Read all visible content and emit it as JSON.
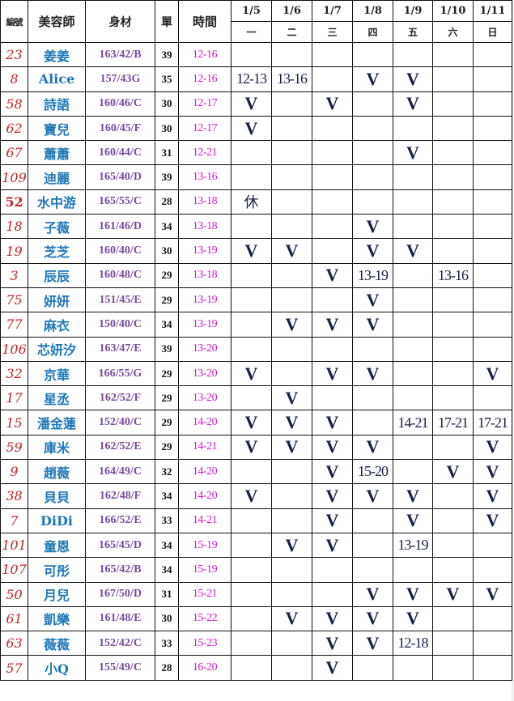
{
  "header": {
    "id": "編號",
    "name": "美容師",
    "body": "身材",
    "count": "單",
    "time": "時間",
    "dates": [
      "1/5",
      "1/6",
      "1/7",
      "1/8",
      "1/9",
      "1/10",
      "1/11"
    ],
    "days": [
      "一",
      "二",
      "三",
      "四",
      "五",
      "六",
      "日"
    ]
  },
  "colors": {
    "id": "#c0272d",
    "name": "#1f78b8",
    "body": "#7a4a9e",
    "time": "#d022c8",
    "mark": "#172247"
  },
  "rows": [
    {
      "id": "23",
      "name": "姜姜",
      "body": "163/42/B",
      "count": "39",
      "time": "12-16",
      "days": [
        "",
        "",
        "",
        "",
        "",
        "",
        ""
      ]
    },
    {
      "id": "8",
      "name": "Alice",
      "body": "157/43G",
      "count": "35",
      "time": "12-16",
      "days": [
        "12-13",
        "13-16",
        "",
        "V",
        "V",
        "",
        ""
      ]
    },
    {
      "id": "58",
      "name": "詩語",
      "body": "160/46/C",
      "count": "30",
      "time": "12-17",
      "days": [
        "V",
        "",
        "V",
        "",
        "V",
        "",
        ""
      ]
    },
    {
      "id": "62",
      "name": "寶兒",
      "body": "160/45/F",
      "count": "30",
      "time": "12-17",
      "days": [
        "V",
        "",
        "",
        "",
        "",
        "",
        ""
      ]
    },
    {
      "id": "67",
      "name": "蕭蕭",
      "body": "160/44/C",
      "count": "31",
      "time": "12-21",
      "days": [
        "",
        "",
        "",
        "",
        "V",
        "",
        ""
      ]
    },
    {
      "id": "109",
      "name": "迪麗",
      "body": "165/40/D",
      "count": "39",
      "time": "13-16",
      "days": [
        "",
        "",
        "",
        "",
        "",
        "",
        ""
      ]
    },
    {
      "id": "52",
      "name": "水中游",
      "body": "165/55/C",
      "count": "28",
      "time": "13-18",
      "days": [
        "休",
        "",
        "",
        "",
        "",
        "",
        ""
      ]
    },
    {
      "id": "18",
      "name": "子薇",
      "body": "161/46/D",
      "count": "34",
      "time": "13-18",
      "days": [
        "",
        "",
        "",
        "V",
        "",
        "",
        ""
      ]
    },
    {
      "id": "19",
      "name": "芝芝",
      "body": "160/40/C",
      "count": "30",
      "time": "13-19",
      "days": [
        "V",
        "V",
        "",
        "V",
        "V",
        "",
        ""
      ]
    },
    {
      "id": "3",
      "name": "辰辰",
      "body": "160/48/C",
      "count": "29",
      "time": "13-18",
      "days": [
        "",
        "",
        "V",
        "13-19",
        "",
        "13-16",
        ""
      ]
    },
    {
      "id": "75",
      "name": "妍妍",
      "body": "151/45/E",
      "count": "29",
      "time": "13-19",
      "days": [
        "",
        "",
        "",
        "V",
        "",
        "",
        ""
      ]
    },
    {
      "id": "77",
      "name": "麻衣",
      "body": "150/40/C",
      "count": "34",
      "time": "13-19",
      "days": [
        "",
        "V",
        "V",
        "V",
        "",
        "",
        ""
      ]
    },
    {
      "id": "106",
      "name": "芯妍汐",
      "body": "163/47/E",
      "count": "39",
      "time": "13-20",
      "days": [
        "",
        "",
        "",
        "",
        "",
        "",
        ""
      ]
    },
    {
      "id": "32",
      "name": "京華",
      "body": "166/55/G",
      "count": "29",
      "time": "13-20",
      "days": [
        "V",
        "",
        "V",
        "V",
        "",
        "",
        "V"
      ]
    },
    {
      "id": "17",
      "name": "星丞",
      "body": "162/52/F",
      "count": "29",
      "time": "13-20",
      "days": [
        "",
        "V",
        "",
        "",
        "",
        "",
        ""
      ]
    },
    {
      "id": "15",
      "name": "潘金蓮",
      "body": "152/40/C",
      "count": "29",
      "time": "14-20",
      "days": [
        "V",
        "V",
        "V",
        "",
        "14-21",
        "17-21",
        "17-21"
      ]
    },
    {
      "id": "59",
      "name": "庫米",
      "body": "162/52/E",
      "count": "29",
      "time": "14-21",
      "days": [
        "V",
        "V",
        "V",
        "V",
        "",
        "",
        "V"
      ]
    },
    {
      "id": "9",
      "name": "趙薇",
      "body": "164/49/C",
      "count": "32",
      "time": "14-20",
      "days": [
        "",
        "",
        "V",
        "15-20",
        "",
        "V",
        "V"
      ]
    },
    {
      "id": "38",
      "name": "貝貝",
      "body": "162/48/F",
      "count": "34",
      "time": "14-20",
      "days": [
        "V",
        "",
        "V",
        "V",
        "V",
        "",
        "V"
      ]
    },
    {
      "id": "7",
      "name": "DiDi",
      "body": "166/52/E",
      "count": "33",
      "time": "14-21",
      "days": [
        "",
        "",
        "V",
        "",
        "V",
        "",
        "V"
      ]
    },
    {
      "id": "101",
      "name": "童恩",
      "body": "165/45/D",
      "count": "34",
      "time": "15-19",
      "days": [
        "",
        "V",
        "V",
        "",
        "13-19",
        "",
        ""
      ]
    },
    {
      "id": "107",
      "name": "可彤",
      "body": "165/42/B",
      "count": "34",
      "time": "15-19",
      "days": [
        "",
        "",
        "",
        "",
        "",
        "",
        ""
      ]
    },
    {
      "id": "50",
      "name": "月兒",
      "body": "167/50/D",
      "count": "31",
      "time": "15-21",
      "days": [
        "",
        "",
        "",
        "V",
        "V",
        "V",
        "V"
      ]
    },
    {
      "id": "61",
      "name": "凱樂",
      "body": "161/48/E",
      "count": "30",
      "time": "15-22",
      "days": [
        "",
        "V",
        "V",
        "V",
        "V",
        "",
        ""
      ]
    },
    {
      "id": "63",
      "name": "薇薇",
      "body": "152/42/C",
      "count": "33",
      "time": "15-23",
      "days": [
        "",
        "",
        "V",
        "V",
        "12-18",
        "",
        ""
      ]
    },
    {
      "id": "57",
      "name": "小Q",
      "body": "155/49/C",
      "count": "28",
      "time": "16-20",
      "days": [
        "",
        "",
        "V",
        "",
        "",
        "",
        ""
      ]
    }
  ]
}
